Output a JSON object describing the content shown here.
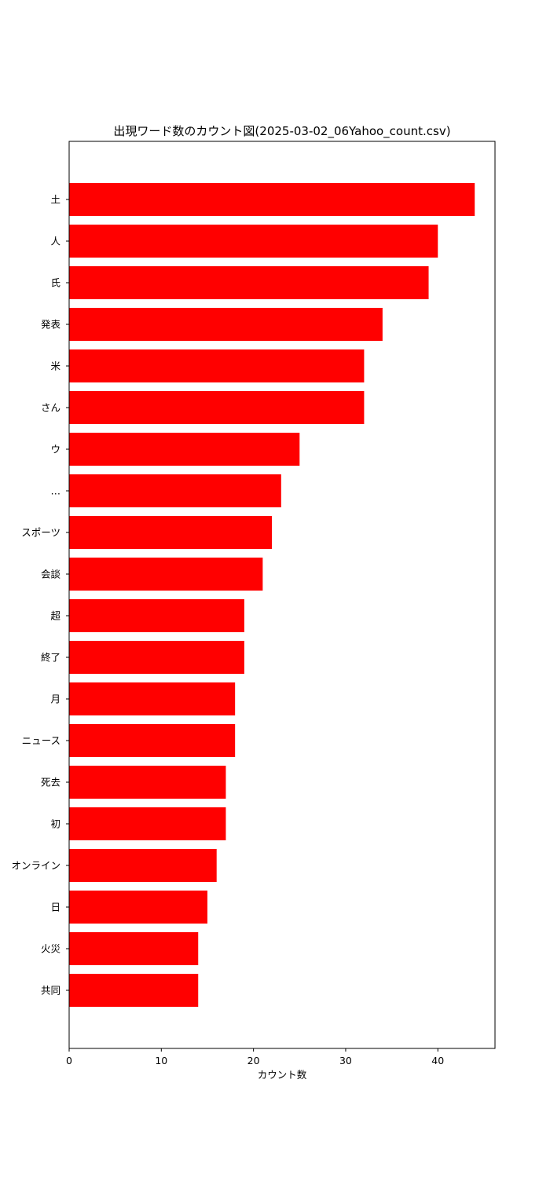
{
  "chart_data": {
    "type": "bar",
    "orientation": "horizontal",
    "title": "出現ワード数のカウント図(2025-03-02_06Yahoo_count.csv)",
    "xlabel": "カウント数",
    "ylabel": "",
    "categories": [
      "土",
      "人",
      "氏",
      "発表",
      "米",
      "さん",
      "ウ",
      "…",
      "スポーツ",
      "会談",
      "超",
      "終了",
      "月",
      "ニュース",
      "死去",
      "初",
      "オンライン",
      "日",
      "火災",
      "共同"
    ],
    "values": [
      44,
      40,
      39,
      34,
      32,
      32,
      25,
      23,
      22,
      21,
      19,
      19,
      18,
      18,
      17,
      17,
      16,
      15,
      14,
      14
    ],
    "xlim": [
      0,
      46.2
    ],
    "xticks": [
      0,
      10,
      20,
      30,
      40
    ],
    "bar_color": "#ff0000",
    "grid": false,
    "legend": "none"
  }
}
